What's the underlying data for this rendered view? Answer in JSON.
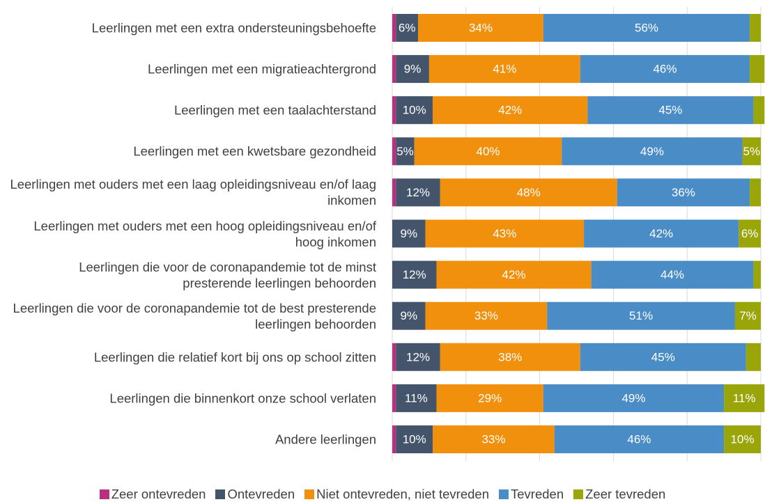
{
  "chart_data": {
    "type": "bar",
    "orientation": "horizontal",
    "stacked": true,
    "categories": [
      "Leerlingen met een extra ondersteuningsbehoefte",
      "Leerlingen met een migratieachtergrond",
      "Leerlingen met een taalachterstand",
      "Leerlingen met een kwetsbare gezondheid",
      "Leerlingen met ouders met een laag opleidingsniveau en/of laag inkomen",
      "Leerlingen met ouders met een hoog opleidingsniveau en/of hoog inkomen",
      "Leerlingen die voor de coronapandemie tot de minst presterende leerlingen behoorden",
      "Leerlingen die voor de coronapandemie tot de best presterende leerlingen behoorden",
      "Leerlingen die relatief kort bij ons op school zitten",
      "Leerlingen die binnenkort onze school verlaten",
      "Andere leerlingen"
    ],
    "series": [
      {
        "name": "Zeer ontevreden",
        "color": "#b8307f",
        "values": [
          1,
          1,
          1,
          1,
          1,
          0,
          0,
          0,
          1,
          1,
          1
        ],
        "value_labels": [
          null,
          null,
          null,
          null,
          null,
          null,
          null,
          null,
          null,
          null,
          null
        ]
      },
      {
        "name": "Ontevreden",
        "color": "#44546a",
        "values": [
          6,
          9,
          10,
          5,
          12,
          9,
          12,
          9,
          12,
          11,
          10
        ],
        "value_labels": [
          "6%",
          "9%",
          "10%",
          "5%",
          "12%",
          "9%",
          "12%",
          "9%",
          "12%",
          "11%",
          "10%"
        ]
      },
      {
        "name": "Niet ontevreden, niet tevreden",
        "color": "#f0900c",
        "values": [
          34,
          41,
          42,
          40,
          48,
          43,
          42,
          33,
          38,
          29,
          33
        ],
        "value_labels": [
          "34%",
          "41%",
          "42%",
          "40%",
          "48%",
          "43%",
          "42%",
          "33%",
          "38%",
          "29%",
          "33%"
        ]
      },
      {
        "name": "Tevreden",
        "color": "#4a8cc6",
        "values": [
          56,
          46,
          45,
          49,
          36,
          42,
          44,
          51,
          45,
          49,
          46
        ],
        "value_labels": [
          "56%",
          "46%",
          "45%",
          "49%",
          "36%",
          "42%",
          "44%",
          "51%",
          "45%",
          "49%",
          "46%"
        ]
      },
      {
        "name": "Zeer tevreden",
        "color": "#9aa50a",
        "values": [
          3,
          4,
          3,
          5,
          3,
          6,
          2,
          7,
          4,
          11,
          10
        ],
        "value_labels": [
          null,
          null,
          null,
          "5%",
          null,
          "6%",
          null,
          "7%",
          null,
          "11%",
          "10%"
        ]
      }
    ],
    "xlim": [
      0,
      100
    ],
    "xticks": [
      0,
      20,
      40,
      60,
      80,
      100
    ],
    "grid": true
  }
}
